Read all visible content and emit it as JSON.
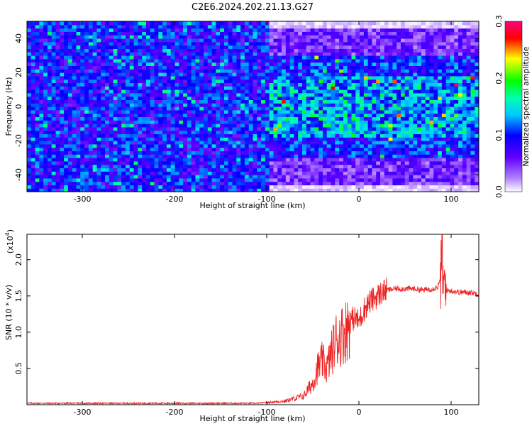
{
  "chart_data": [
    {
      "type": "heatmap",
      "title": "C2E6.2024.202.21.13.G27",
      "xlabel": "Height of straight line (km)",
      "ylabel": "Frequency (Hz)",
      "xlim": [
        -360,
        130
      ],
      "ylim": [
        -50,
        50
      ],
      "x_ticks": [
        -300,
        -200,
        -100,
        0,
        100
      ],
      "y_ticks": [
        -40,
        -20,
        0,
        20,
        40
      ],
      "colorbar": {
        "label": "Normalized spectral amplitude",
        "range": [
          0.0,
          0.3
        ],
        "ticks": [
          "0.0",
          "0.1",
          "0.2",
          "0.3"
        ],
        "colors": [
          "#ffffff",
          "#8000ff",
          "#0000ff",
          "#00ffff",
          "#00ff00",
          "#ffff00",
          "#ff0000",
          "#ff0080"
        ]
      },
      "regions": [
        {
          "x_range": [
            -360,
            -95
          ],
          "freq_range": [
            -50,
            50
          ],
          "level": "uniform low-moderate amplitude"
        },
        {
          "x_range": [
            -95,
            130
          ],
          "freq_range": [
            -45,
            45
          ],
          "level": "higher amplitude concentrated near 0 Hz"
        }
      ]
    },
    {
      "type": "line",
      "xlabel": "Height of straight line (km)",
      "ylabel": "SNR (10 * v/v)",
      "y_multiplier": "(x10^4)",
      "y_multiplier_base": "(x10",
      "y_multiplier_exp": "4",
      "y_multiplier_close": ")",
      "xlim": [
        -360,
        130
      ],
      "ylim": [
        0,
        2.35
      ],
      "x_ticks": [
        -300,
        -200,
        -100,
        0,
        100
      ],
      "y_ticks": [
        "0.5",
        "1.0",
        "1.5",
        "2.0"
      ],
      "color": "#ee2222",
      "x": [
        -360,
        -300,
        -250,
        -200,
        -150,
        -110,
        -100,
        -80,
        -60,
        -50,
        -45,
        -40,
        -35,
        -30,
        -25,
        -20,
        -15,
        -10,
        -5,
        0,
        5,
        10,
        15,
        20,
        25,
        30,
        40,
        50,
        60,
        70,
        80,
        85,
        88,
        90,
        92,
        95,
        100,
        110,
        120,
        130
      ],
      "y": [
        0.02,
        0.02,
        0.02,
        0.02,
        0.02,
        0.02,
        0.03,
        0.05,
        0.12,
        0.3,
        0.5,
        0.6,
        0.5,
        0.7,
        0.9,
        0.95,
        1.0,
        1.15,
        1.2,
        1.15,
        1.3,
        1.4,
        1.45,
        1.5,
        1.55,
        1.58,
        1.6,
        1.6,
        1.6,
        1.58,
        1.6,
        1.62,
        1.7,
        2.2,
        1.5,
        1.58,
        1.57,
        1.55,
        1.55,
        1.53
      ]
    }
  ]
}
